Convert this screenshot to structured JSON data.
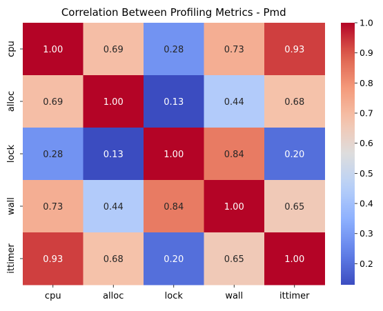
{
  "chart_data": {
    "type": "heatmap",
    "title": "Correlation Between Profiling Metrics - Pmd",
    "xlabel": "",
    "ylabel": "",
    "x_categories": [
      "cpu",
      "alloc",
      "lock",
      "wall",
      "ittimer"
    ],
    "y_categories": [
      "cpu",
      "alloc",
      "lock",
      "wall",
      "ittimer"
    ],
    "values": [
      [
        1.0,
        0.69,
        0.28,
        0.73,
        0.93
      ],
      [
        0.69,
        1.0,
        0.13,
        0.44,
        0.68
      ],
      [
        0.28,
        0.13,
        1.0,
        0.84,
        0.2
      ],
      [
        0.73,
        0.44,
        0.84,
        1.0,
        0.65
      ],
      [
        0.93,
        0.68,
        0.2,
        0.65,
        1.0
      ]
    ],
    "annotation_format": "0.00",
    "colormap": "coolwarm",
    "color_range": [
      0.13,
      1.0
    ],
    "colorbar_ticks": [
      0.2,
      0.3,
      0.4,
      0.5,
      0.6,
      0.7,
      0.8,
      0.9,
      1.0
    ],
    "colorbar_tick_labels": [
      "0.2",
      "0.3",
      "0.4",
      "0.5",
      "0.6",
      "0.7",
      "0.8",
      "0.9",
      "1.0"
    ]
  }
}
